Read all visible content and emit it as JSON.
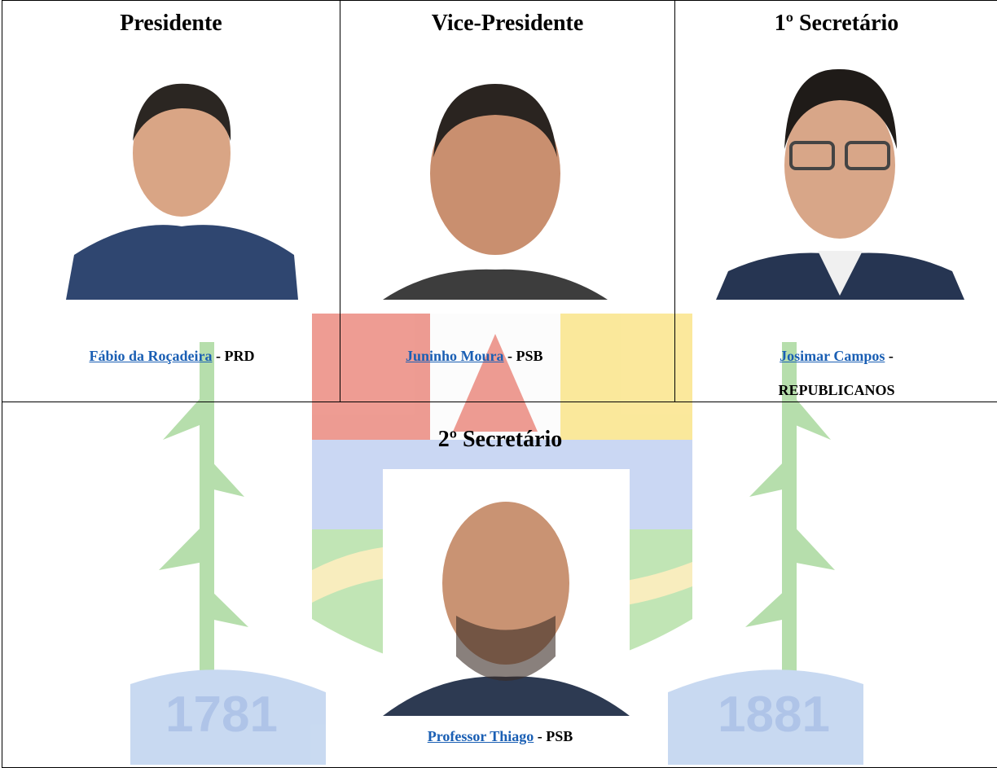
{
  "separator": "-",
  "watermark": {
    "years": [
      "1781",
      "1881"
    ]
  },
  "members": [
    {
      "role": "Presidente",
      "name": "Fábio da Roçadeira",
      "party": "PRD"
    },
    {
      "role": "Vice-Presidente",
      "name": "Juninho Moura",
      "party": "PSB"
    },
    {
      "role": "1º Secretário",
      "name": "Josimar Campos",
      "party": "REPUBLICANOS"
    },
    {
      "role": "2º Secretário",
      "name": "Professor Thiago",
      "party": "PSB"
    }
  ]
}
